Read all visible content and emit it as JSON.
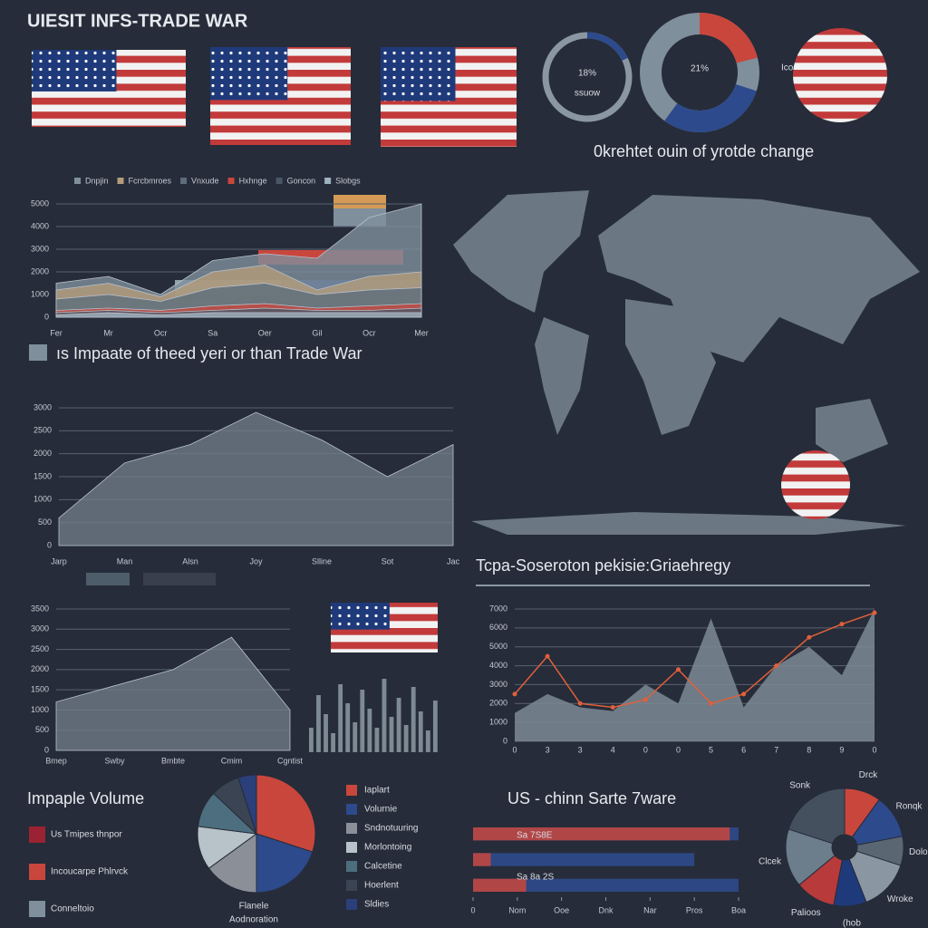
{
  "title": "UIESIT INFS-TRADE WAR",
  "gauges": [
    {
      "value": 18,
      "label": "18%",
      "sublabel": "ssuow"
    },
    {
      "value": 21,
      "label": "21%"
    }
  ],
  "gauge_note": "Icoste tase",
  "subtitle": "0krehtet ouin of yrotde change",
  "caption": "ıs Impaate of theed yeri or than Trade War",
  "chart_data": [
    {
      "type": "area",
      "categories": [
        "Fer",
        "Mr",
        "Ocr",
        "Sa",
        "Oer",
        "Gil",
        "Ocr",
        "Mer"
      ],
      "ylim": [
        0,
        5000
      ],
      "yticks": [
        0,
        1000,
        2000,
        3000,
        4000,
        5000
      ],
      "grid": true,
      "series": [
        {
          "name": "Dnpjin",
          "color": "#7f8f9c",
          "values": [
            1500,
            1800,
            1000,
            2500,
            2800,
            2600,
            4400,
            5000
          ]
        },
        {
          "name": "Fcrcbmroes",
          "color": "#b49c7a",
          "values": [
            1200,
            1500,
            900,
            2000,
            2300,
            1200,
            1800,
            2000
          ]
        },
        {
          "name": "Vnxude",
          "color": "#5d6d7c",
          "values": [
            800,
            1000,
            700,
            1300,
            1500,
            1000,
            1200,
            1300
          ]
        },
        {
          "name": "Hxhnge",
          "color": "#c9463d",
          "values": [
            300,
            400,
            300,
            500,
            600,
            400,
            500,
            600
          ]
        },
        {
          "name": "Goncon",
          "color": "#4a5666",
          "values": [
            200,
            300,
            200,
            300,
            400,
            300,
            300,
            400
          ]
        },
        {
          "name": "Slobgs",
          "color": "#9fb2bf",
          "values": [
            100,
            200,
            100,
            200,
            200,
            200,
            200,
            200
          ]
        }
      ]
    },
    {
      "type": "area",
      "categories": [
        "Jarp",
        "Man",
        "Alsn",
        "Joy",
        "Slline",
        "Sot",
        "Jac"
      ],
      "ylim": [
        0,
        3000
      ],
      "yticks": [
        0,
        500,
        1000,
        1500,
        2000,
        2500,
        3000
      ],
      "grid": true,
      "series": [
        {
          "color": "#6f7b86",
          "values": [
            600,
            1800,
            2200,
            2900,
            2300,
            1500,
            2200
          ]
        }
      ]
    },
    {
      "type": "area",
      "categories": [
        "Bmep",
        "Swby",
        "Bmbte",
        "Cmim",
        "Cgntist"
      ],
      "ylim": [
        0,
        3500
      ],
      "yticks": [
        0,
        500,
        1000,
        1500,
        2000,
        2500,
        3000,
        3500
      ],
      "grid": true,
      "series": [
        {
          "color": "#6f7b86",
          "values": [
            1200,
            1600,
            2000,
            2800,
            1000
          ]
        }
      ]
    },
    {
      "type": "bar",
      "ylim": [
        0,
        3000
      ],
      "color": "#7d8a94",
      "values": [
        900,
        2100,
        1400,
        700,
        2500,
        1800,
        1100,
        2300,
        1600,
        900,
        2700,
        1300,
        2000,
        1000,
        2400,
        1500,
        800,
        1900
      ]
    },
    {
      "type": "line",
      "title": "Tcpa-Soseroton pekisie:Griaehregy",
      "categories": [
        "0",
        "3",
        "3",
        "4",
        "0",
        "0",
        "5",
        "6",
        "7",
        "8",
        "9",
        "0"
      ],
      "ylim": [
        0,
        7000
      ],
      "yticks": [
        0,
        1000,
        2000,
        3000,
        4000,
        5000,
        6000,
        7000
      ],
      "grid": true,
      "series": [
        {
          "color": "#7d8a94",
          "fill": true,
          "values": [
            1500,
            2500,
            1800,
            1600,
            3000,
            2000,
            6500,
            1800,
            4000,
            5000,
            3500,
            7000
          ]
        },
        {
          "color": "#e0603a",
          "fill": false,
          "values": [
            2500,
            4500,
            2000,
            1800,
            2200,
            3800,
            2000,
            2500,
            4000,
            5500,
            6200,
            6800
          ]
        }
      ]
    },
    {
      "type": "pie",
      "title": "Impaple Volume",
      "caption": [
        "Flanele",
        "Aodnoration"
      ],
      "categories": [
        "Iaplart",
        "Volurnie",
        "Sndnotuuring",
        "Morlontoing",
        "Calcetine",
        "Hoerlent",
        "Sldies"
      ],
      "values": [
        30,
        20,
        15,
        12,
        10,
        8,
        5
      ],
      "colors": [
        "#c9463d",
        "#2d4a8c",
        "#8a8f98",
        "#b7c3c8",
        "#4d6e7e",
        "#3a4452",
        "#2b3f7a"
      ],
      "side_legend": [
        {
          "name": "Us Tmipes thnpor",
          "color": "#9b2233"
        },
        {
          "name": "Incoucarpe Phlrvck",
          "color": "#c9463d"
        },
        {
          "name": "Conneltoio",
          "color": "#7f8f9c"
        }
      ]
    },
    {
      "type": "hbar",
      "title": "US - chinn Sarte 7ware",
      "xlim": [
        0,
        6
      ],
      "xticks": [
        0,
        {
          "value": 1,
          "label": "Nom"
        },
        {
          "value": 2,
          "label": "Ooe"
        },
        {
          "value": 3,
          "label": "Dnk"
        },
        {
          "value": 4,
          "label": "Nar"
        },
        {
          "value": 5,
          "label": "Pros"
        },
        {
          "value": 6,
          "label": "Boa"
        }
      ],
      "series": [
        {
          "color": "#c9463d",
          "values": [
            5.8,
            0.4,
            1.2
          ]
        },
        {
          "color": "#2d4a8c",
          "values": [
            6,
            5,
            6
          ]
        }
      ],
      "annotations": [
        "Sa 7S8E",
        "Sa 8a 2S"
      ]
    },
    {
      "type": "donut",
      "categories": [
        "Drck",
        "Ronqk",
        "Dolok",
        "Wroke",
        "(hob",
        "Palioos",
        "Clcek",
        "Sonk"
      ],
      "values": [
        10,
        12,
        8,
        14,
        9,
        11,
        16,
        20
      ],
      "colors": [
        "#c9463d",
        "#2d4a8c",
        "#5b6673",
        "#8a97a3",
        "#1f3a7a",
        "#b83a3a",
        "#6c7d8c",
        "#44505e"
      ]
    }
  ]
}
